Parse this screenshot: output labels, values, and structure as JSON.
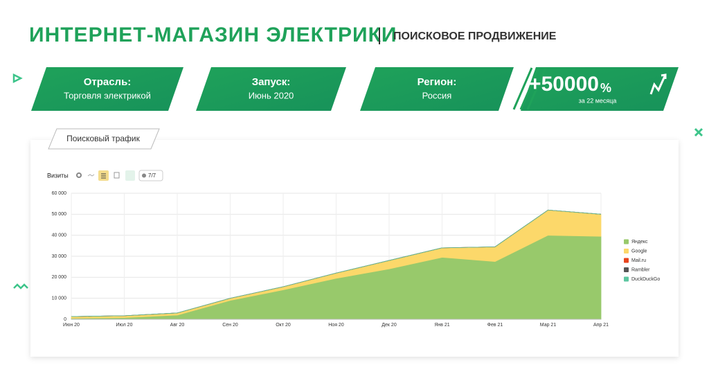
{
  "header": {
    "title": "ИНТЕРНЕТ-МАГАЗИН ЭЛЕКТРИКИ",
    "subtitle": "ПОИСКОВОЕ ПРОДВИЖЕНИЕ"
  },
  "cards": [
    {
      "label": "Отрасль:",
      "value": "Торговля электрикой"
    },
    {
      "label": "Запуск:",
      "value": "Июнь 2020"
    },
    {
      "label": "Регион:",
      "value": "Россия"
    }
  ],
  "growth": {
    "value": "+50000",
    "unit": "%",
    "period": "за 22 месяца"
  },
  "tab": "Поисковый трафик",
  "toolbar": {
    "label": "Визиты",
    "filter": "7/7"
  },
  "chart_data": {
    "type": "area",
    "stacked": true,
    "categories": [
      "Июн 20",
      "Июл 20",
      "Авг 20",
      "Сен 20",
      "Окт 20",
      "Ноя 20",
      "Дек 20",
      "Янв 21",
      "Фев 21",
      "Мар 21",
      "Апр 21"
    ],
    "series": [
      {
        "name": "Яндекс",
        "color": "#98c96b",
        "values": [
          500,
          800,
          2000,
          9000,
          14000,
          19500,
          24000,
          29500,
          27500,
          40000,
          39500
        ]
      },
      {
        "name": "Google",
        "color": "#fcd86a",
        "values": [
          800,
          900,
          1000,
          1000,
          1500,
          2500,
          4000,
          4500,
          7000,
          12000,
          10500
        ]
      },
      {
        "name": "Mail.ru",
        "color": "#e8441d",
        "values": [
          0,
          0,
          0,
          0,
          0,
          0,
          0,
          0,
          0,
          0,
          0
        ]
      },
      {
        "name": "Rambler",
        "color": "#555555",
        "values": [
          0,
          0,
          0,
          0,
          0,
          0,
          0,
          0,
          0,
          0,
          0
        ]
      },
      {
        "name": "DuckDuckGo",
        "color": "#5cc6a0",
        "values": [
          0,
          0,
          0,
          0,
          0,
          0,
          0,
          0,
          0,
          0,
          0
        ]
      }
    ],
    "ylim": [
      0,
      60000
    ],
    "yticks": [
      0,
      {
        "value": 10000,
        "label": "10 000"
      },
      {
        "value": 20000,
        "label": "20 000"
      },
      {
        "value": 30000,
        "label": "30 000"
      },
      {
        "value": 40000,
        "label": "40 000"
      },
      {
        "value": 50000,
        "label": "50 000"
      },
      {
        "value": 60000,
        "label": "60 000"
      }
    ],
    "grid": true,
    "legend": "right"
  }
}
